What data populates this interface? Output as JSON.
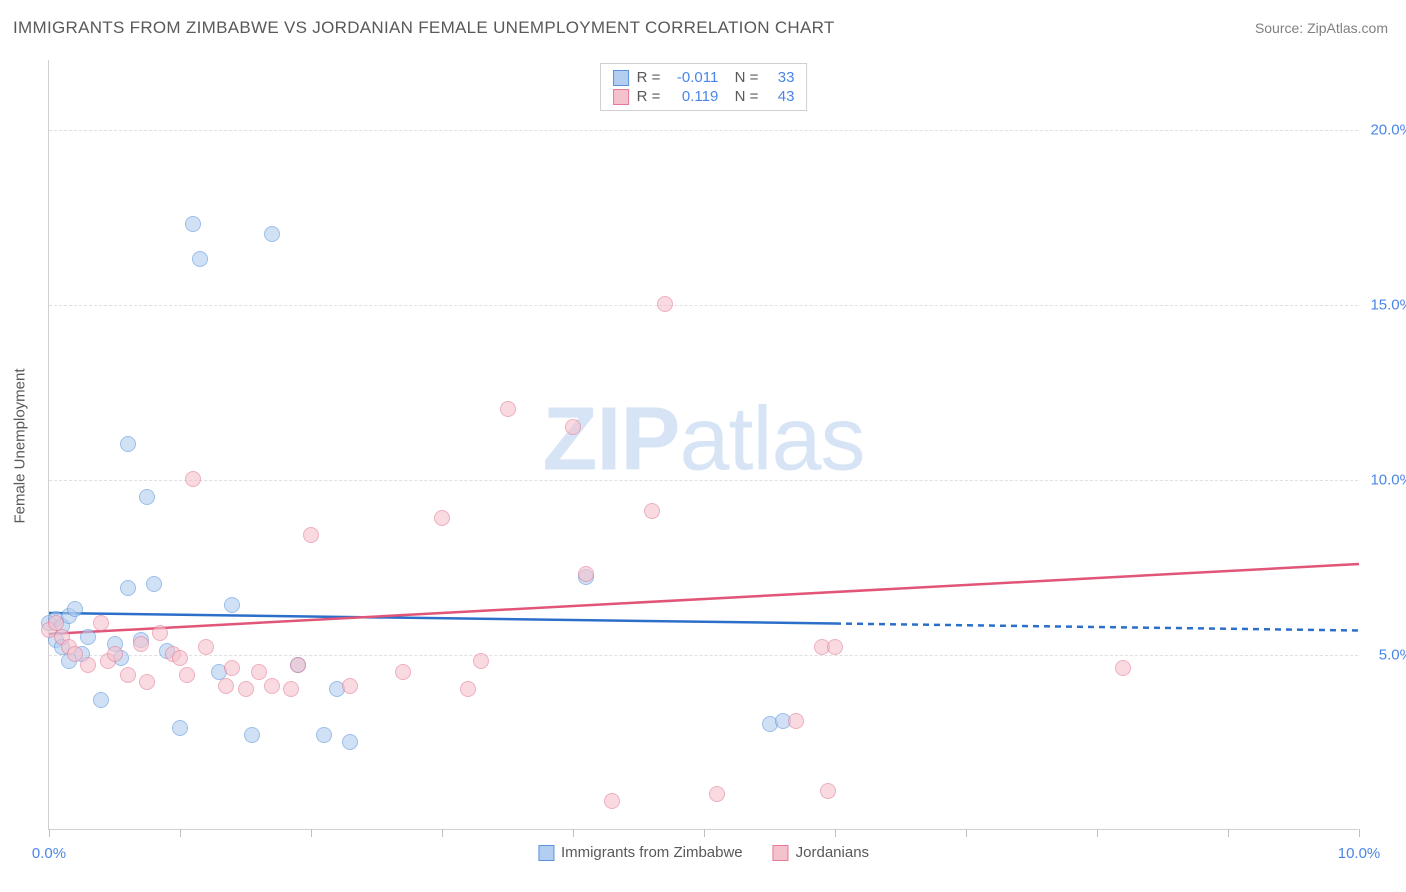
{
  "title": "IMMIGRANTS FROM ZIMBABWE VS JORDANIAN FEMALE UNEMPLOYMENT CORRELATION CHART",
  "source": "Source: ZipAtlas.com",
  "y_axis_title": "Female Unemployment",
  "watermark": {
    "bold": "ZIP",
    "rest": "atlas"
  },
  "chart": {
    "type": "scatter",
    "xlim": [
      0,
      10
    ],
    "ylim": [
      0,
      22
    ],
    "x_ticks": [
      0,
      1,
      2,
      3,
      4,
      5,
      6,
      7,
      8,
      9,
      10
    ],
    "x_tick_labels": {
      "0": "0.0%",
      "10": "10.0%"
    },
    "y_gridlines": [
      5,
      10,
      15,
      20
    ],
    "y_tick_labels": {
      "5": "5.0%",
      "10": "10.0%",
      "15": "15.0%",
      "20": "20.0%"
    },
    "background_color": "#ffffff",
    "grid_color": "#e0e0e0",
    "axis_color": "#d0d0d0",
    "tick_label_color": "#4a86e8",
    "marker_radius": 8,
    "marker_opacity": 0.6,
    "series": [
      {
        "name": "Immigrants from Zimbabwe",
        "fill": "#b3cef0",
        "stroke": "#5a94db",
        "trend": {
          "color": "#2b6fc9",
          "y_start": 6.2,
          "y_end": 5.7,
          "solid_until_x": 6.0
        },
        "R": "-0.011",
        "N": "33",
        "points": [
          [
            0.0,
            5.9
          ],
          [
            0.05,
            6.0
          ],
          [
            0.05,
            5.4
          ],
          [
            0.1,
            5.8
          ],
          [
            0.1,
            5.2
          ],
          [
            0.15,
            6.1
          ],
          [
            0.15,
            4.8
          ],
          [
            0.2,
            6.3
          ],
          [
            0.25,
            5.0
          ],
          [
            0.3,
            5.5
          ],
          [
            0.4,
            3.7
          ],
          [
            0.5,
            5.3
          ],
          [
            0.55,
            4.9
          ],
          [
            0.6,
            6.9
          ],
          [
            0.6,
            11.0
          ],
          [
            0.7,
            5.4
          ],
          [
            0.75,
            9.5
          ],
          [
            0.8,
            7.0
          ],
          [
            0.9,
            5.1
          ],
          [
            1.0,
            2.9
          ],
          [
            1.1,
            17.3
          ],
          [
            1.15,
            16.3
          ],
          [
            1.3,
            4.5
          ],
          [
            1.4,
            6.4
          ],
          [
            1.55,
            2.7
          ],
          [
            1.7,
            17.0
          ],
          [
            1.9,
            4.7
          ],
          [
            2.1,
            2.7
          ],
          [
            2.2,
            4.0
          ],
          [
            2.3,
            2.5
          ],
          [
            4.1,
            7.2
          ],
          [
            5.5,
            3.0
          ],
          [
            5.6,
            3.1
          ]
        ]
      },
      {
        "name": "Jordanians",
        "fill": "#f4c2cd",
        "stroke": "#e77a95",
        "trend": {
          "color": "#e15579",
          "y_start": 5.6,
          "y_end": 7.6,
          "solid_until_x": 10.0
        },
        "R": "0.119",
        "N": "43",
        "points": [
          [
            0.0,
            5.7
          ],
          [
            0.05,
            5.9
          ],
          [
            0.1,
            5.5
          ],
          [
            0.15,
            5.2
          ],
          [
            0.2,
            5.0
          ],
          [
            0.3,
            4.7
          ],
          [
            0.4,
            5.9
          ],
          [
            0.45,
            4.8
          ],
          [
            0.5,
            5.0
          ],
          [
            0.6,
            4.4
          ],
          [
            0.7,
            5.3
          ],
          [
            0.75,
            4.2
          ],
          [
            0.85,
            5.6
          ],
          [
            0.95,
            5.0
          ],
          [
            1.0,
            4.9
          ],
          [
            1.05,
            4.4
          ],
          [
            1.1,
            10.0
          ],
          [
            1.2,
            5.2
          ],
          [
            1.35,
            4.1
          ],
          [
            1.4,
            4.6
          ],
          [
            1.5,
            4.0
          ],
          [
            1.6,
            4.5
          ],
          [
            1.7,
            4.1
          ],
          [
            1.85,
            4.0
          ],
          [
            1.9,
            4.7
          ],
          [
            2.0,
            8.4
          ],
          [
            2.3,
            4.1
          ],
          [
            2.7,
            4.5
          ],
          [
            3.0,
            8.9
          ],
          [
            3.2,
            4.0
          ],
          [
            3.3,
            4.8
          ],
          [
            3.5,
            12.0
          ],
          [
            4.0,
            11.5
          ],
          [
            4.1,
            7.3
          ],
          [
            4.3,
            0.8
          ],
          [
            4.6,
            9.1
          ],
          [
            4.7,
            15.0
          ],
          [
            5.1,
            1.0
          ],
          [
            5.7,
            3.1
          ],
          [
            5.9,
            5.2
          ],
          [
            5.95,
            1.1
          ],
          [
            6.0,
            5.2
          ],
          [
            8.2,
            4.6
          ]
        ]
      }
    ]
  }
}
